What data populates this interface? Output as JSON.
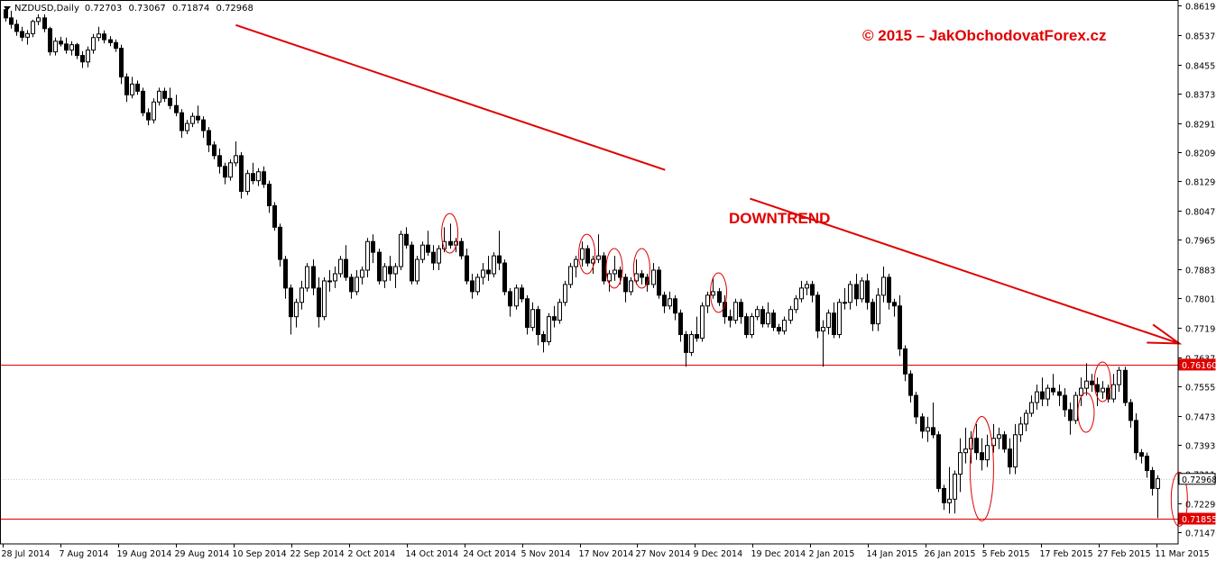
{
  "header": {
    "symbol": "NZDUSD,Daily",
    "open": "0.72703",
    "high": "0.73067",
    "low": "0.71874",
    "close": "0.72968"
  },
  "annotations": {
    "copyright": "© 2015 – JakObchodovatForex.cz",
    "trend_label": "DOWNTREND"
  },
  "colors": {
    "bull_candle": "#ffffff",
    "bear_candle": "#000000",
    "accent": "#e00000",
    "level_badge": "#e00000"
  },
  "chart_data": {
    "type": "candlestick",
    "title": "",
    "xlabel": "",
    "ylabel": "",
    "ylim": [
      0.7115,
      0.8635
    ],
    "grid": false,
    "y_ticks": [
      "0.86190",
      "0.85370",
      "0.84550",
      "0.83730",
      "0.82910",
      "0.82090",
      "0.81290",
      "0.80470",
      "0.79650",
      "0.78830",
      "0.78010",
      "0.77190",
      "0.76370",
      "0.75550",
      "0.74730",
      "0.73930",
      "0.73110",
      "0.72290",
      "0.71470"
    ],
    "x_ticks": [
      "28 Jul 2014",
      "7 Aug 2014",
      "19 Aug 2014",
      "29 Aug 2014",
      "10 Sep 2014",
      "22 Sep 2014",
      "2 Oct 2014",
      "14 Oct 2014",
      "24 Oct 2014",
      "5 Nov 2014",
      "17 Nov 2014",
      "27 Nov 2014",
      "9 Dec 2014",
      "19 Dec 2014",
      "2 Jan 2015",
      "14 Jan 2015",
      "26 Jan 2015",
      "5 Feb 2015",
      "17 Feb 2015",
      "27 Feb 2015",
      "11 Mar 2015"
    ],
    "levels": [
      {
        "value": 0.7616,
        "label": "0.76160",
        "color": "#e00000"
      },
      {
        "value": 0.71855,
        "label": "0.71855",
        "color": "#e00000"
      },
      {
        "value": 0.72968,
        "label": "0.72968",
        "color": "#000000"
      }
    ],
    "trendline": {
      "from": {
        "bar": 42,
        "price": 0.8565
      },
      "to": {
        "bar": 214,
        "price": 0.7675
      }
    },
    "highlights": [
      {
        "bar": 81,
        "price": 0.7983
      },
      {
        "bar": 106,
        "price": 0.7925
      },
      {
        "bar": 111,
        "price": 0.7885
      },
      {
        "bar": 116,
        "price": 0.7885
      },
      {
        "bar": 130,
        "price": 0.7817
      },
      {
        "bar": 178,
        "price": 0.7325
      },
      {
        "bar": 197,
        "price": 0.7482
      },
      {
        "bar": 200,
        "price": 0.7568
      },
      {
        "bar": 214,
        "price": 0.724
      }
    ],
    "candles": [
      [
        0.8608,
        0.8617,
        0.8575,
        0.8585
      ],
      [
        0.8585,
        0.8605,
        0.8555,
        0.8567
      ],
      [
        0.8567,
        0.858,
        0.8535,
        0.8547
      ],
      [
        0.8547,
        0.856,
        0.852,
        0.8531
      ],
      [
        0.8531,
        0.8551,
        0.851,
        0.8541
      ],
      [
        0.8541,
        0.858,
        0.8531,
        0.8575
      ],
      [
        0.8575,
        0.8595,
        0.8565,
        0.8585
      ],
      [
        0.8585,
        0.8595,
        0.8545,
        0.8555
      ],
      [
        0.8555,
        0.856,
        0.848,
        0.849
      ],
      [
        0.849,
        0.853,
        0.848,
        0.852
      ],
      [
        0.852,
        0.8532,
        0.8505,
        0.8512
      ],
      [
        0.8512,
        0.853,
        0.8485,
        0.8495
      ],
      [
        0.8495,
        0.852,
        0.848,
        0.851
      ],
      [
        0.851,
        0.8515,
        0.847,
        0.848
      ],
      [
        0.848,
        0.8492,
        0.8445,
        0.8462
      ],
      [
        0.8462,
        0.8505,
        0.8447,
        0.8495
      ],
      [
        0.8495,
        0.854,
        0.8485,
        0.853
      ],
      [
        0.853,
        0.856,
        0.852,
        0.854
      ],
      [
        0.854,
        0.855,
        0.8514,
        0.8524
      ],
      [
        0.8524,
        0.8534,
        0.8506,
        0.8516
      ],
      [
        0.8516,
        0.8525,
        0.849,
        0.85
      ],
      [
        0.85,
        0.851,
        0.84,
        0.842
      ],
      [
        0.842,
        0.843,
        0.835,
        0.837
      ],
      [
        0.837,
        0.842,
        0.836,
        0.84
      ],
      [
        0.84,
        0.841,
        0.837,
        0.838
      ],
      [
        0.838,
        0.839,
        0.831,
        0.832
      ],
      [
        0.832,
        0.8332,
        0.8285,
        0.83
      ],
      [
        0.83,
        0.836,
        0.829,
        0.835
      ],
      [
        0.835,
        0.839,
        0.834,
        0.838
      ],
      [
        0.838,
        0.839,
        0.835,
        0.836
      ],
      [
        0.836,
        0.839,
        0.833,
        0.834
      ],
      [
        0.834,
        0.837,
        0.831,
        0.832
      ],
      [
        0.832,
        0.833,
        0.825,
        0.827
      ],
      [
        0.827,
        0.83,
        0.826,
        0.829
      ],
      [
        0.829,
        0.832,
        0.828,
        0.831
      ],
      [
        0.831,
        0.834,
        0.829,
        0.83
      ],
      [
        0.83,
        0.831,
        0.825,
        0.827
      ],
      [
        0.827,
        0.828,
        0.821,
        0.823
      ],
      [
        0.823,
        0.824,
        0.819,
        0.82
      ],
      [
        0.82,
        0.822,
        0.815,
        0.817
      ],
      [
        0.817,
        0.818,
        0.812,
        0.814
      ],
      [
        0.814,
        0.819,
        0.813,
        0.818
      ],
      [
        0.818,
        0.824,
        0.817,
        0.82
      ],
      [
        0.82,
        0.821,
        0.808,
        0.81
      ],
      [
        0.81,
        0.816,
        0.809,
        0.815
      ],
      [
        0.815,
        0.818,
        0.812,
        0.813
      ],
      [
        0.813,
        0.8165,
        0.8115,
        0.8155
      ],
      [
        0.8155,
        0.817,
        0.811,
        0.812
      ],
      [
        0.812,
        0.813,
        0.804,
        0.806
      ],
      [
        0.806,
        0.807,
        0.799,
        0.8
      ],
      [
        0.8,
        0.801,
        0.789,
        0.791
      ],
      [
        0.791,
        0.792,
        0.78,
        0.783
      ],
      [
        0.783,
        0.784,
        0.77,
        0.775
      ],
      [
        0.775,
        0.78,
        0.772,
        0.779
      ],
      [
        0.779,
        0.785,
        0.777,
        0.783
      ],
      [
        0.783,
        0.79,
        0.782,
        0.789
      ],
      [
        0.789,
        0.791,
        0.781,
        0.783
      ],
      [
        0.783,
        0.786,
        0.772,
        0.775
      ],
      [
        0.775,
        0.786,
        0.774,
        0.785
      ],
      [
        0.785,
        0.788,
        0.782,
        0.785
      ],
      [
        0.785,
        0.789,
        0.783,
        0.787
      ],
      [
        0.787,
        0.792,
        0.786,
        0.791
      ],
      [
        0.791,
        0.795,
        0.785,
        0.786
      ],
      [
        0.786,
        0.787,
        0.78,
        0.782
      ],
      [
        0.782,
        0.788,
        0.781,
        0.786
      ],
      [
        0.786,
        0.789,
        0.784,
        0.788
      ],
      [
        0.788,
        0.797,
        0.786,
        0.796
      ],
      [
        0.796,
        0.798,
        0.79,
        0.793
      ],
      [
        0.793,
        0.794,
        0.784,
        0.785
      ],
      [
        0.785,
        0.79,
        0.783,
        0.789
      ],
      [
        0.789,
        0.792,
        0.785,
        0.787
      ],
      [
        0.787,
        0.79,
        0.783,
        0.789
      ],
      [
        0.789,
        0.799,
        0.788,
        0.798
      ],
      [
        0.798,
        0.8,
        0.794,
        0.795
      ],
      [
        0.795,
        0.796,
        0.784,
        0.785
      ],
      [
        0.785,
        0.792,
        0.784,
        0.791
      ],
      [
        0.791,
        0.796,
        0.79,
        0.795
      ],
      [
        0.795,
        0.799,
        0.792,
        0.793
      ],
      [
        0.793,
        0.795,
        0.788,
        0.79
      ],
      [
        0.79,
        0.795,
        0.788,
        0.794
      ],
      [
        0.794,
        0.8,
        0.793,
        0.796
      ],
      [
        0.796,
        0.801,
        0.794,
        0.795
      ],
      [
        0.795,
        0.797,
        0.793,
        0.796
      ],
      [
        0.796,
        0.797,
        0.791,
        0.792
      ],
      [
        0.792,
        0.794,
        0.784,
        0.785
      ],
      [
        0.785,
        0.787,
        0.78,
        0.782
      ],
      [
        0.782,
        0.787,
        0.781,
        0.786
      ],
      [
        0.786,
        0.79,
        0.784,
        0.788
      ],
      [
        0.788,
        0.792,
        0.785,
        0.787
      ],
      [
        0.787,
        0.793,
        0.786,
        0.792
      ],
      [
        0.792,
        0.799,
        0.788,
        0.79
      ],
      [
        0.79,
        0.791,
        0.781,
        0.782
      ],
      [
        0.782,
        0.783,
        0.775,
        0.778
      ],
      [
        0.778,
        0.784,
        0.777,
        0.783
      ],
      [
        0.783,
        0.784,
        0.779,
        0.78
      ],
      [
        0.78,
        0.781,
        0.77,
        0.772
      ],
      [
        0.772,
        0.779,
        0.771,
        0.777
      ],
      [
        0.777,
        0.778,
        0.767,
        0.77
      ],
      [
        0.77,
        0.771,
        0.765,
        0.768
      ],
      [
        0.768,
        0.776,
        0.767,
        0.775
      ],
      [
        0.775,
        0.778,
        0.772,
        0.774
      ],
      [
        0.774,
        0.78,
        0.773,
        0.779
      ],
      [
        0.779,
        0.785,
        0.778,
        0.784
      ],
      [
        0.784,
        0.79,
        0.783,
        0.789
      ],
      [
        0.789,
        0.792,
        0.786,
        0.791
      ],
      [
        0.791,
        0.796,
        0.789,
        0.794
      ],
      [
        0.794,
        0.795,
        0.789,
        0.79
      ],
      [
        0.79,
        0.792,
        0.787,
        0.791
      ],
      [
        0.791,
        0.798,
        0.79,
        0.792
      ],
      [
        0.792,
        0.793,
        0.784,
        0.785
      ],
      [
        0.785,
        0.788,
        0.782,
        0.787
      ],
      [
        0.787,
        0.792,
        0.785,
        0.788
      ],
      [
        0.788,
        0.789,
        0.784,
        0.786
      ],
      [
        0.786,
        0.787,
        0.779,
        0.782
      ],
      [
        0.782,
        0.786,
        0.781,
        0.785
      ],
      [
        0.785,
        0.791,
        0.784,
        0.787
      ],
      [
        0.787,
        0.788,
        0.784,
        0.786
      ],
      [
        0.786,
        0.787,
        0.782,
        0.784
      ],
      [
        0.784,
        0.79,
        0.783,
        0.788
      ],
      [
        0.788,
        0.789,
        0.78,
        0.781
      ],
      [
        0.781,
        0.782,
        0.776,
        0.778
      ],
      [
        0.778,
        0.782,
        0.777,
        0.78
      ],
      [
        0.78,
        0.781,
        0.774,
        0.776
      ],
      [
        0.776,
        0.777,
        0.768,
        0.77
      ],
      [
        0.77,
        0.771,
        0.761,
        0.765
      ],
      [
        0.765,
        0.771,
        0.764,
        0.77
      ],
      [
        0.77,
        0.775,
        0.768,
        0.769
      ],
      [
        0.769,
        0.779,
        0.768,
        0.778
      ],
      [
        0.778,
        0.782,
        0.776,
        0.781
      ],
      [
        0.781,
        0.786,
        0.78,
        0.782
      ],
      [
        0.782,
        0.783,
        0.778,
        0.779
      ],
      [
        0.779,
        0.781,
        0.773,
        0.775
      ],
      [
        0.775,
        0.777,
        0.772,
        0.774
      ],
      [
        0.774,
        0.78,
        0.773,
        0.779
      ],
      [
        0.779,
        0.78,
        0.773,
        0.775
      ],
      [
        0.775,
        0.776,
        0.769,
        0.77
      ],
      [
        0.77,
        0.776,
        0.769,
        0.775
      ],
      [
        0.775,
        0.778,
        0.774,
        0.777
      ],
      [
        0.777,
        0.778,
        0.772,
        0.773
      ],
      [
        0.773,
        0.779,
        0.772,
        0.776
      ],
      [
        0.776,
        0.777,
        0.771,
        0.772
      ],
      [
        0.772,
        0.773,
        0.77,
        0.771
      ],
      [
        0.771,
        0.775,
        0.77,
        0.774
      ],
      [
        0.774,
        0.778,
        0.773,
        0.777
      ],
      [
        0.777,
        0.781,
        0.776,
        0.78
      ],
      [
        0.78,
        0.785,
        0.779,
        0.783
      ],
      [
        0.783,
        0.785,
        0.781,
        0.784
      ],
      [
        0.784,
        0.785,
        0.779,
        0.781
      ],
      [
        0.781,
        0.782,
        0.769,
        0.771
      ],
      [
        0.771,
        0.774,
        0.761,
        0.772
      ],
      [
        0.772,
        0.777,
        0.77,
        0.776
      ],
      [
        0.776,
        0.779,
        0.769,
        0.77
      ],
      [
        0.77,
        0.78,
        0.769,
        0.779
      ],
      [
        0.779,
        0.783,
        0.777,
        0.779
      ],
      [
        0.779,
        0.785,
        0.777,
        0.784
      ],
      [
        0.784,
        0.787,
        0.778,
        0.78
      ],
      [
        0.78,
        0.786,
        0.779,
        0.785
      ],
      [
        0.785,
        0.787,
        0.777,
        0.779
      ],
      [
        0.779,
        0.78,
        0.771,
        0.773
      ],
      [
        0.773,
        0.783,
        0.771,
        0.781
      ],
      [
        0.781,
        0.789,
        0.779,
        0.786
      ],
      [
        0.786,
        0.787,
        0.777,
        0.779
      ],
      [
        0.779,
        0.78,
        0.775,
        0.778
      ],
      [
        0.778,
        0.781,
        0.764,
        0.766
      ],
      [
        0.766,
        0.767,
        0.757,
        0.759
      ],
      [
        0.759,
        0.76,
        0.751,
        0.753
      ],
      [
        0.753,
        0.754,
        0.745,
        0.747
      ],
      [
        0.747,
        0.748,
        0.741,
        0.743
      ],
      [
        0.743,
        0.747,
        0.74,
        0.744
      ],
      [
        0.744,
        0.751,
        0.741,
        0.742
      ],
      [
        0.742,
        0.743,
        0.726,
        0.727
      ],
      [
        0.727,
        0.728,
        0.721,
        0.723
      ],
      [
        0.723,
        0.733,
        0.72,
        0.724
      ],
      [
        0.724,
        0.732,
        0.72,
        0.731
      ],
      [
        0.731,
        0.741,
        0.726,
        0.737
      ],
      [
        0.737,
        0.744,
        0.734,
        0.738
      ],
      [
        0.738,
        0.743,
        0.734,
        0.741
      ],
      [
        0.741,
        0.745,
        0.735,
        0.737
      ],
      [
        0.737,
        0.741,
        0.732,
        0.735
      ],
      [
        0.735,
        0.742,
        0.733,
        0.739
      ],
      [
        0.739,
        0.745,
        0.737,
        0.741
      ],
      [
        0.741,
        0.744,
        0.738,
        0.742
      ],
      [
        0.742,
        0.743,
        0.737,
        0.738
      ],
      [
        0.738,
        0.741,
        0.731,
        0.733
      ],
      [
        0.733,
        0.745,
        0.731,
        0.742
      ],
      [
        0.742,
        0.747,
        0.74,
        0.745
      ],
      [
        0.745,
        0.749,
        0.743,
        0.748
      ],
      [
        0.748,
        0.753,
        0.747,
        0.751
      ],
      [
        0.751,
        0.756,
        0.749,
        0.754
      ],
      [
        0.754,
        0.758,
        0.75,
        0.752
      ],
      [
        0.752,
        0.756,
        0.75,
        0.755
      ],
      [
        0.755,
        0.759,
        0.753,
        0.754
      ],
      [
        0.754,
        0.756,
        0.75,
        0.753
      ],
      [
        0.753,
        0.755,
        0.747,
        0.749
      ],
      [
        0.749,
        0.751,
        0.742,
        0.746
      ],
      [
        0.746,
        0.754,
        0.745,
        0.753
      ],
      [
        0.753,
        0.758,
        0.75,
        0.755
      ],
      [
        0.755,
        0.762,
        0.753,
        0.757
      ],
      [
        0.757,
        0.759,
        0.754,
        0.756
      ],
      [
        0.756,
        0.758,
        0.75,
        0.754
      ],
      [
        0.754,
        0.757,
        0.752,
        0.755
      ],
      [
        0.755,
        0.756,
        0.751,
        0.752
      ],
      [
        0.752,
        0.759,
        0.751,
        0.756
      ],
      [
        0.756,
        0.761,
        0.754,
        0.76
      ],
      [
        0.76,
        0.761,
        0.75,
        0.751
      ],
      [
        0.751,
        0.752,
        0.744,
        0.746
      ],
      [
        0.746,
        0.748,
        0.735,
        0.737
      ],
      [
        0.737,
        0.738,
        0.734,
        0.736
      ],
      [
        0.736,
        0.737,
        0.73,
        0.732
      ],
      [
        0.732,
        0.733,
        0.725,
        0.727
      ],
      [
        0.727,
        0.7307,
        0.7187,
        0.7297
      ]
    ]
  }
}
